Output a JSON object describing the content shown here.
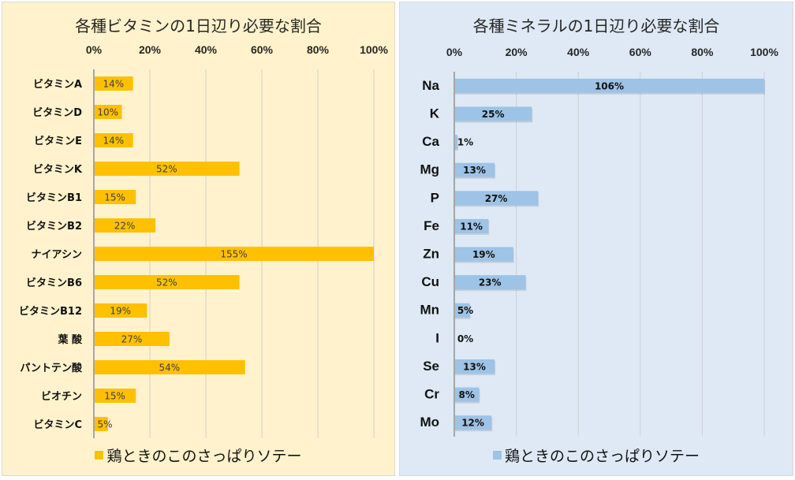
{
  "chart_data": [
    {
      "type": "bar",
      "orientation": "horizontal",
      "title": "各種ビタミンの1日辺り必要な割合",
      "categories": [
        "ビタミンA",
        "ビタミンD",
        "ビタミンE",
        "ビタミンK",
        "ビタミンB1",
        "ビタミンB2",
        "ナイアシン",
        "ビタミンB6",
        "ビタミンB12",
        "葉 酸",
        "パントテン酸",
        "ビオチン",
        "ビタミンC"
      ],
      "series": [
        {
          "name": "鶏ときのこのさっぱりソテー",
          "values": [
            14,
            10,
            14,
            52,
            15,
            22,
            155,
            52,
            19,
            27,
            54,
            15,
            5
          ]
        }
      ],
      "data_labels": [
        "14%",
        "10%",
        "14%",
        "52%",
        "15%",
        "22%",
        "155%",
        "52%",
        "19%",
        "27%",
        "54%",
        "15%",
        "5%"
      ],
      "xlim": [
        0,
        100
      ],
      "xticks": [
        "0%",
        "20%",
        "40%",
        "60%",
        "80%",
        "100%"
      ],
      "x_axis_position": "top",
      "grid": true,
      "legend": "bottom",
      "colors": {
        "bar": "#ffc000",
        "background": "#fff2cc"
      }
    },
    {
      "type": "bar",
      "orientation": "horizontal",
      "title": "各種ミネラルの1日辺り必要な割合",
      "categories": [
        "Na",
        "K",
        "Ca",
        "Mg",
        "P",
        "Fe",
        "Zn",
        "Cu",
        "Mn",
        "I",
        "Se",
        "Cr",
        "Mo"
      ],
      "series": [
        {
          "name": "鶏ときのこのさっぱりソテー",
          "values": [
            106,
            25,
            1,
            13,
            27,
            11,
            19,
            23,
            5,
            0,
            13,
            8,
            12
          ]
        }
      ],
      "data_labels": [
        "106%",
        "25%",
        "1%",
        "13%",
        "27%",
        "11%",
        "19%",
        "23%",
        "5%",
        "0%",
        "13%",
        "8%",
        "12%"
      ],
      "xlim": [
        0,
        100
      ],
      "xticks": [
        "0%",
        "20%",
        "40%",
        "60%",
        "80%",
        "100%"
      ],
      "x_axis_position": "top",
      "grid": true,
      "legend": "bottom",
      "colors": {
        "bar": "#9dc3e6",
        "background": "#dee9f5"
      }
    }
  ]
}
